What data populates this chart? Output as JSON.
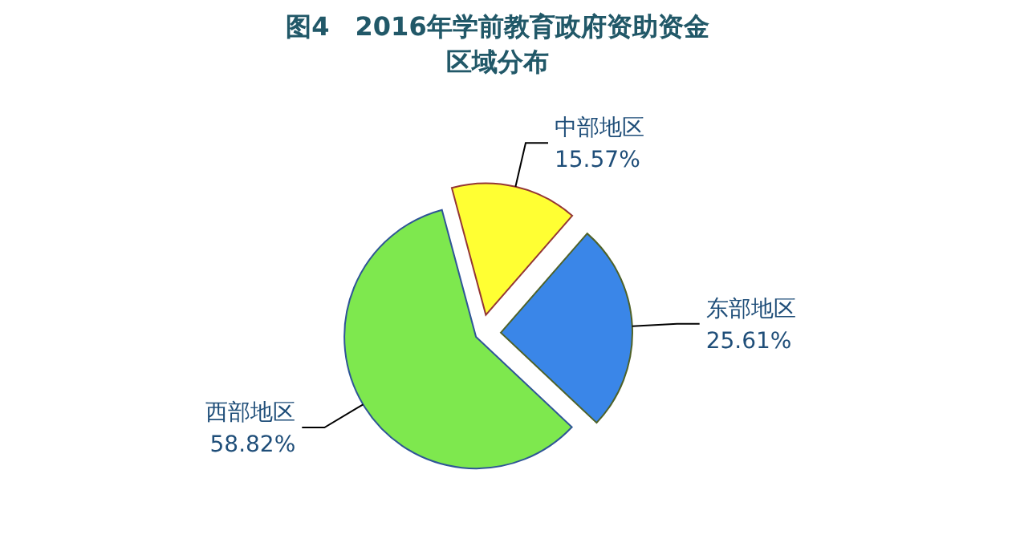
{
  "chart_data": {
    "type": "pie",
    "title": "图4　2016年学前教育政府资助资金区域分布",
    "categories": [
      "中部地区",
      "东部地区",
      "西部地区"
    ],
    "values": [
      15.57,
      25.61,
      58.82
    ],
    "value_labels": [
      "15.57%",
      "25.61%",
      "58.82%"
    ],
    "colors": [
      "#ffff33",
      "#3a86e8",
      "#7ee84e"
    ]
  }
}
